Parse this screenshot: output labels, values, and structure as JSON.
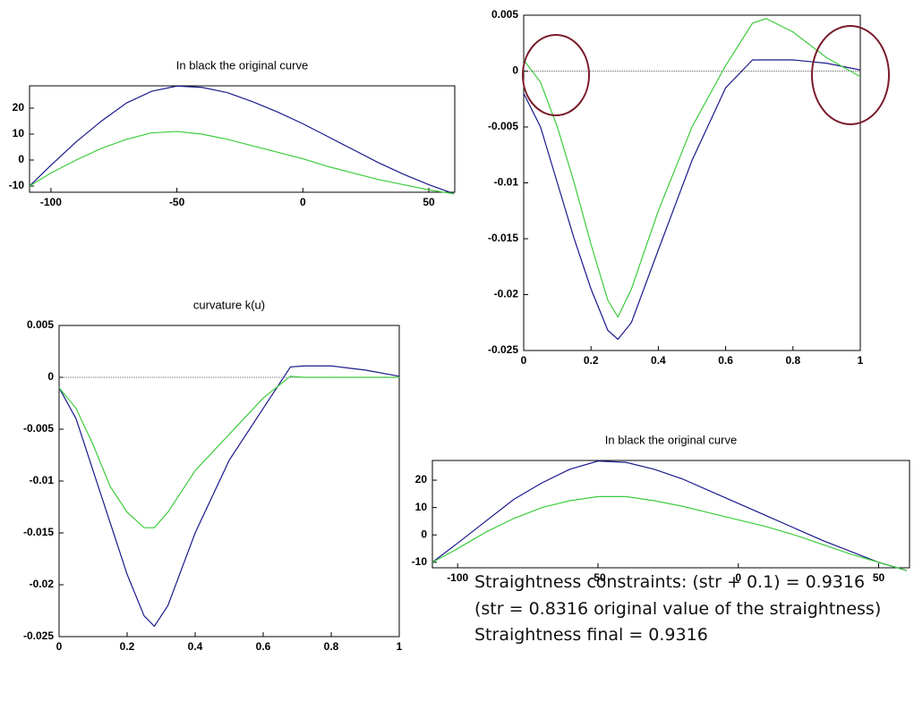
{
  "chart_data": [
    {
      "type": "line",
      "title": "In black the original curve",
      "x": [
        -108.5,
        -100,
        -90,
        -80,
        -70,
        -60,
        -50,
        -40,
        -30,
        -20,
        -10,
        0,
        10,
        20,
        30,
        40,
        50,
        60
      ],
      "series": [
        {
          "color": "#1a1a8c",
          "values": [
            -10,
            -2,
            7,
            15,
            22,
            26.5,
            28.5,
            28,
            26,
            22.5,
            18.5,
            14,
            9,
            4,
            -1,
            -5.5,
            -9.5,
            -13
          ]
        },
        {
          "color": "#3ccc3c",
          "values": [
            -10,
            -5,
            0,
            4.5,
            8,
            10.5,
            11,
            10,
            8,
            5.5,
            3,
            0.5,
            -2.5,
            -5,
            -7.5,
            -9.5,
            -11.5,
            -13
          ]
        }
      ],
      "xlim": [
        -108.5,
        60.3
      ],
      "ylim": [
        -12.4,
        28.6
      ],
      "xticks": [
        -100,
        -50,
        0,
        50
      ],
      "yticks": [
        -10,
        0,
        10,
        20
      ]
    },
    {
      "type": "line",
      "x": [
        0,
        0.05,
        0.1,
        0.15,
        0.2,
        0.25,
        0.28,
        0.32,
        0.4,
        0.5,
        0.6,
        0.68,
        0.72,
        0.8,
        0.9,
        1
      ],
      "series": [
        {
          "color": "#1a1a8c",
          "values": [
            -0.002,
            -0.005,
            -0.01,
            -0.015,
            -0.0195,
            -0.0232,
            -0.024,
            -0.0225,
            -0.016,
            -0.008,
            -0.0015,
            0.001,
            0.001,
            0.001,
            0.0007,
            0.0001
          ]
        },
        {
          "color": "#3ccc3c",
          "values": [
            0.001,
            -0.001,
            -0.005,
            -0.01,
            -0.0155,
            -0.0205,
            -0.022,
            -0.0195,
            -0.0125,
            -0.005,
            0.0005,
            0.0043,
            0.0047,
            0.0035,
            0.0012,
            -0.0005
          ]
        }
      ],
      "xlim": [
        0,
        1
      ],
      "ylim": [
        -0.025,
        0.005
      ],
      "xticks": [
        0,
        0.2,
        0.4,
        0.6,
        0.8,
        1
      ],
      "yticks": [
        -0.025,
        -0.02,
        -0.015,
        -0.01,
        -0.005,
        0,
        0.005
      ],
      "zero_line": true
    },
    {
      "type": "line",
      "title": "curvature k(u)",
      "x": [
        0,
        0.05,
        0.1,
        0.15,
        0.2,
        0.25,
        0.28,
        0.32,
        0.4,
        0.5,
        0.6,
        0.68,
        0.72,
        0.8,
        0.9,
        1
      ],
      "series": [
        {
          "color": "#1a1a8c",
          "values": [
            -0.001,
            -0.004,
            -0.009,
            -0.014,
            -0.019,
            -0.023,
            -0.024,
            -0.022,
            -0.015,
            -0.008,
            -0.003,
            0.001,
            0.0011,
            0.0011,
            0.0007,
            0.0001
          ]
        },
        {
          "color": "#3ccc3c",
          "values": [
            -0.001,
            -0.003,
            -0.0065,
            -0.0105,
            -0.013,
            -0.0145,
            -0.0145,
            -0.013,
            -0.009,
            -0.0055,
            -0.002,
            0.0001,
            0,
            0,
            0,
            0
          ]
        }
      ],
      "xlim": [
        0,
        1
      ],
      "ylim": [
        -0.025,
        0.005
      ],
      "xticks": [
        0,
        0.2,
        0.4,
        0.6,
        0.8,
        1
      ],
      "yticks": [
        -0.025,
        -0.02,
        -0.015,
        -0.01,
        -0.005,
        0,
        0.005
      ],
      "zero_line": true
    },
    {
      "type": "line",
      "title": "In black the original curve",
      "x": [
        -109,
        -100,
        -90,
        -80,
        -70,
        -60,
        -50,
        -40,
        -30,
        -20,
        -10,
        0,
        10,
        20,
        30,
        40,
        50,
        60
      ],
      "series": [
        {
          "color": "#1a1a8c",
          "values": [
            -10,
            -3,
            5,
            13,
            19,
            24,
            27,
            26.5,
            24,
            20.5,
            16,
            11.5,
            7,
            2.5,
            -2,
            -6,
            -10,
            -13
          ]
        },
        {
          "color": "#3ccc3c",
          "values": [
            -10,
            -5,
            1,
            6,
            10,
            12.5,
            14,
            14,
            12.5,
            10.5,
            8,
            5.5,
            3,
            0,
            -3.5,
            -7,
            -10,
            -13
          ]
        }
      ],
      "xlim": [
        -109,
        61
      ],
      "ylim": [
        -12,
        27.2
      ],
      "xticks": [
        -100,
        -50,
        0,
        50
      ],
      "yticks": [
        -10,
        0,
        10,
        20
      ]
    }
  ],
  "notes": [
    "Straightness constraints: (str + 0.1) = 0.9316",
    "(str = 0.8316 original value of the straightness)",
    "Straightness final = 0.9316"
  ]
}
